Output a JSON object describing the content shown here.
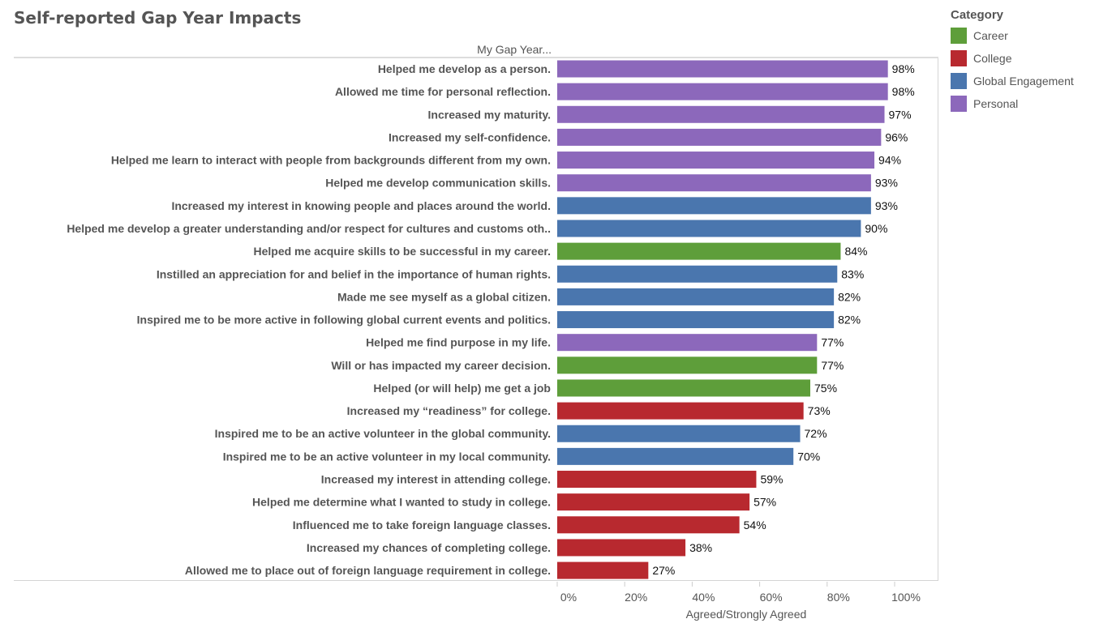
{
  "chart_data": {
    "type": "bar",
    "orientation": "horizontal",
    "title": "Self-reported Gap Year Impacts",
    "row_header": "My Gap Year...",
    "xlabel": "Agreed/Strongly Agreed",
    "xlim": [
      0,
      113
    ],
    "xticks": [
      "0%",
      "20%",
      "40%",
      "60%",
      "80%",
      "100%"
    ],
    "xtick_values": [
      0,
      20,
      40,
      60,
      80,
      100
    ],
    "legend": {
      "title": "Category",
      "placement": "top-right",
      "entries": [
        {
          "name": "Career",
          "color": "#5e9e3a"
        },
        {
          "name": "College",
          "color": "#b8292f"
        },
        {
          "name": "Global Engagement",
          "color": "#4a76ae"
        },
        {
          "name": "Personal",
          "color": "#8c68bb"
        }
      ]
    },
    "bars": [
      {
        "label": "Helped me develop as a person.",
        "value": 98,
        "category": "Personal"
      },
      {
        "label": "Allowed me time for personal reflection.",
        "value": 98,
        "category": "Personal"
      },
      {
        "label": "Increased my maturity.",
        "value": 97,
        "category": "Personal"
      },
      {
        "label": "Increased my self-confidence.",
        "value": 96,
        "category": "Personal"
      },
      {
        "label": "Helped me learn to interact with people from backgrounds different from my own.",
        "value": 94,
        "category": "Personal"
      },
      {
        "label": "Helped me develop communication skills.",
        "value": 93,
        "category": "Personal"
      },
      {
        "label": "Increased my interest in knowing people and places around the world.",
        "value": 93,
        "category": "Global Engagement"
      },
      {
        "label": "Helped me develop a greater understanding and/or respect for cultures and customs oth..",
        "value": 90,
        "category": "Global Engagement"
      },
      {
        "label": "Helped me acquire skills to be successful in my career.",
        "value": 84,
        "category": "Career"
      },
      {
        "label": "Instilled an appreciation for and belief in the importance of human rights.",
        "value": 83,
        "category": "Global Engagement"
      },
      {
        "label": "Made me see myself as a global citizen.",
        "value": 82,
        "category": "Global Engagement"
      },
      {
        "label": "Inspired me to be more active in following global current events and politics.",
        "value": 82,
        "category": "Global Engagement"
      },
      {
        "label": "Helped me find purpose in my life.",
        "value": 77,
        "category": "Personal"
      },
      {
        "label": "Will or has impacted my career decision.",
        "value": 77,
        "category": "Career"
      },
      {
        "label": "Helped (or will help) me get a job",
        "value": 75,
        "category": "Career"
      },
      {
        "label": "Increased my “readiness” for college.",
        "value": 73,
        "category": "College"
      },
      {
        "label": "Inspired me to be an active volunteer in the global community.",
        "value": 72,
        "category": "Global Engagement"
      },
      {
        "label": "Inspired me to be an active volunteer in my local community.",
        "value": 70,
        "category": "Global Engagement"
      },
      {
        "label": "Increased my interest in attending college.",
        "value": 59,
        "category": "College"
      },
      {
        "label": "Helped me determine what I wanted to study in college.",
        "value": 57,
        "category": "College"
      },
      {
        "label": "Influenced me to take foreign language classes.",
        "value": 54,
        "category": "College"
      },
      {
        "label": "Increased my chances of completing college.",
        "value": 38,
        "category": "College"
      },
      {
        "label": "Allowed me to place out of foreign language requirement in college.",
        "value": 27,
        "category": "College"
      }
    ]
  }
}
